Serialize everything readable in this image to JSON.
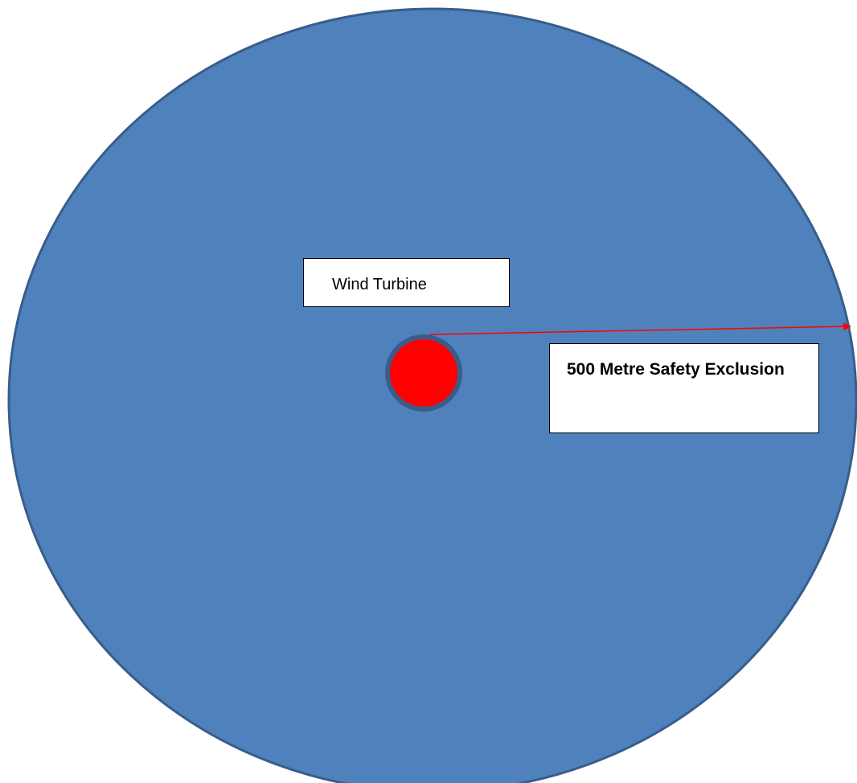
{
  "labels": {
    "turbine": "Wind Turbine",
    "exclusion_zone": "500 Metre Safety Exclusion"
  },
  "colors": {
    "zone_fill": "#4f81bd",
    "zone_border": "#385d8a",
    "turbine_fill": "#ff0000",
    "arrow": "#ff0000",
    "label_box_fill": "#ffffff",
    "label_box_border": "#000000"
  }
}
